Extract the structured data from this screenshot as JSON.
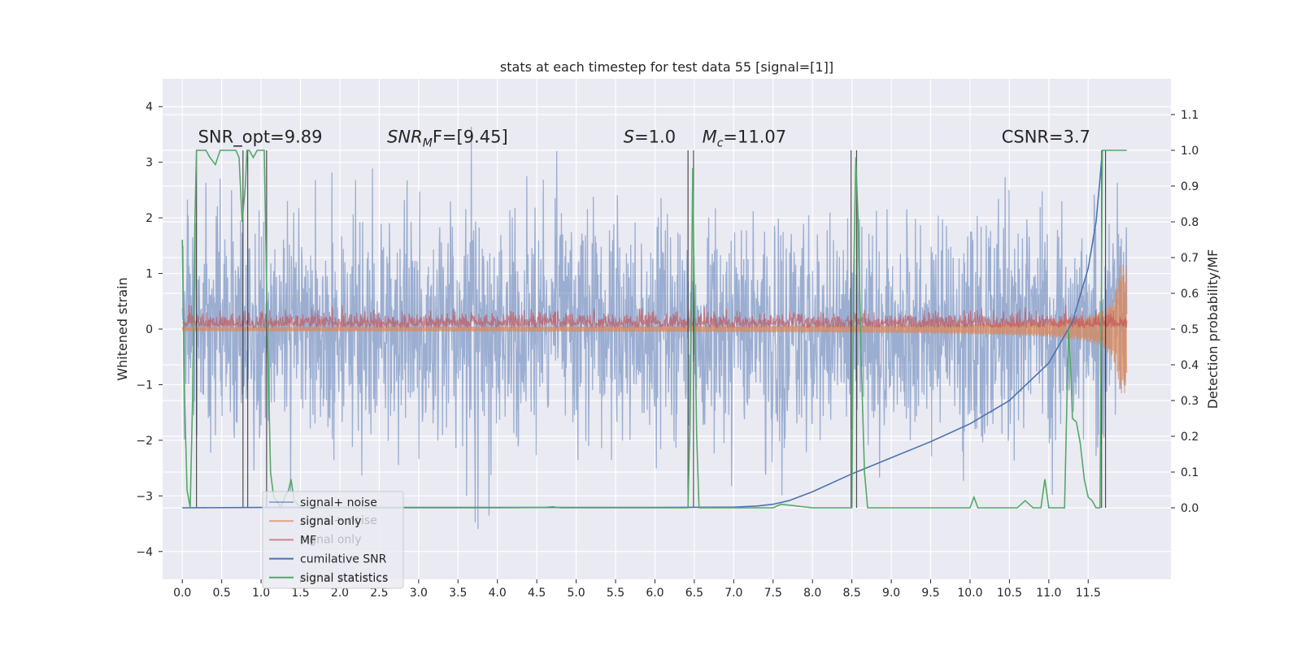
{
  "chart_data": {
    "type": "line",
    "title": "stats at each timestep for test data 55 [signal=[1]]",
    "xlabel": "",
    "ylabel": "Whitened strain",
    "y2label": "Detection probability/MF",
    "xlim": [
      -0.25,
      12.55
    ],
    "ylim": [
      -4.5,
      4.5
    ],
    "y2lim": [
      -0.2,
      1.2
    ],
    "xticks": [
      0.0,
      0.5,
      1.0,
      1.5,
      2.0,
      2.5,
      3.0,
      3.5,
      4.0,
      4.5,
      5.0,
      5.5,
      6.0,
      6.5,
      7.0,
      7.5,
      8.0,
      8.5,
      9.0,
      9.5,
      10.0,
      10.5,
      11.0,
      11.5
    ],
    "xtick_labels": [
      "0.0",
      "0.5",
      "1.0",
      "1.5",
      "2.0",
      "2.5",
      "3.0",
      "3.5",
      "4.0",
      "4.5",
      "5.0",
      "5.5",
      "6.0",
      "6.5",
      "7.0",
      "7.5",
      "8.0",
      "8.5",
      "9.0",
      "9.5",
      "10.0",
      "10.5",
      "11.0",
      "11.5"
    ],
    "yticks": [
      -4,
      -3,
      -2,
      -1,
      0,
      1,
      2,
      3,
      4
    ],
    "ytick_labels": [
      "−4",
      "−3",
      "−2",
      "−1",
      "0",
      "1",
      "2",
      "3",
      "4"
    ],
    "y2ticks": [
      0.0,
      0.1,
      0.2,
      0.3,
      0.4,
      0.5,
      0.6,
      0.7,
      0.8,
      0.9,
      1.0,
      1.1
    ],
    "y2tick_labels": [
      "0.0",
      "0.1",
      "0.2",
      "0.3",
      "0.4",
      "0.5",
      "0.6",
      "0.7",
      "0.8",
      "0.9",
      "1.0",
      "1.1"
    ],
    "grid": true,
    "legend_position": "lower-left",
    "annotations": [
      {
        "x": 0.2,
        "y": 3.25,
        "text": "SNR_opt=9.89",
        "math": false
      },
      {
        "x": 2.6,
        "y": 3.25,
        "text": "SNR",
        "sub": "M",
        "after": "F=[9.45]",
        "math": true
      },
      {
        "x": 5.6,
        "y": 3.25,
        "text": "S",
        "after": "=1.0",
        "math": true
      },
      {
        "x": 6.6,
        "y": 3.25,
        "text": "M",
        "sub": "c",
        "after": "=11.07",
        "math": true
      },
      {
        "x": 10.4,
        "y": 3.25,
        "text": "CSNR=3.7",
        "math": false
      }
    ],
    "series": [
      {
        "name": "signal+ noise",
        "color": "#4c72b0",
        "axis": "left",
        "style": "noise",
        "amplitude": 1.0,
        "x_range": [
          0.0,
          11.99
        ]
      },
      {
        "name": "signal only",
        "color": "#dd8452",
        "axis": "left",
        "style": "envelope",
        "x_range": [
          0.0,
          11.99
        ]
      },
      {
        "name": "MF",
        "color": "#c44e52",
        "axis": "left",
        "style": "positive-noise",
        "x_range": [
          0.0,
          11.99
        ]
      },
      {
        "name": "cumilative SNR",
        "color": "#4c72b0",
        "axis": "right",
        "x": [
          0.0,
          1.0,
          2.0,
          3.0,
          4.0,
          5.0,
          6.0,
          7.0,
          7.3,
          7.5,
          7.7,
          8.0,
          8.5,
          9.0,
          9.5,
          10.0,
          10.5,
          11.0,
          11.3,
          11.5,
          11.6,
          11.65,
          11.68
        ],
        "y": [
          0.0,
          0.001,
          0.001,
          0.001,
          0.001,
          0.001,
          0.001,
          0.002,
          0.005,
          0.01,
          0.02,
          0.045,
          0.095,
          0.14,
          0.185,
          0.235,
          0.3,
          0.405,
          0.52,
          0.67,
          0.8,
          0.92,
          1.0
        ]
      },
      {
        "name": "signal statistics",
        "color": "#55a868",
        "axis": "right",
        "x": [
          0.0,
          0.03,
          0.06,
          0.1,
          0.13,
          0.16,
          0.18,
          0.2,
          0.22,
          0.25,
          0.3,
          0.35,
          0.42,
          0.48,
          0.55,
          0.62,
          0.68,
          0.72,
          0.76,
          0.8,
          0.82,
          0.85,
          0.9,
          0.95,
          1.0,
          1.04,
          1.08,
          1.12,
          1.16,
          1.2,
          1.25,
          1.3,
          1.35,
          1.38,
          1.42,
          1.5,
          1.6,
          2.0,
          3.0,
          4.0,
          4.6,
          4.7,
          4.8,
          5.0,
          6.0,
          6.42,
          6.45,
          6.48,
          6.5,
          6.53,
          6.56,
          6.6,
          7.0,
          7.5,
          7.6,
          8.0,
          8.5,
          8.52,
          8.55,
          8.58,
          8.62,
          8.66,
          8.7,
          8.8,
          9.0,
          10.0,
          10.05,
          10.1,
          10.6,
          10.7,
          10.8,
          10.9,
          10.95,
          11.0,
          11.1,
          11.2,
          11.25,
          11.28,
          11.3,
          11.35,
          11.4,
          11.45,
          11.5,
          11.55,
          11.6,
          11.65,
          11.68,
          11.72,
          11.8,
          11.99
        ],
        "y": [
          0.75,
          0.3,
          0.05,
          0.0,
          0.3,
          0.8,
          1.0,
          1.0,
          1.0,
          1.0,
          1.0,
          0.98,
          0.96,
          1.0,
          1.0,
          1.0,
          1.0,
          0.98,
          0.8,
          0.9,
          1.0,
          1.0,
          0.98,
          1.0,
          1.0,
          1.0,
          0.5,
          0.1,
          0.03,
          0.02,
          0.0,
          0.03,
          0.05,
          0.08,
          0.02,
          0.0,
          0.0,
          0.0,
          0.0,
          0.0,
          0.001,
          0.003,
          0.0,
          0.0,
          0.0,
          0.0,
          0.3,
          0.95,
          0.6,
          0.2,
          0.0,
          0.0,
          0.0,
          0.0,
          0.01,
          0.0,
          0.0,
          0.6,
          0.98,
          0.8,
          0.4,
          0.1,
          0.0,
          0.0,
          0.0,
          0.0,
          0.03,
          0.0,
          0.0,
          0.02,
          0.0,
          0.0,
          0.08,
          0.0,
          0.0,
          0.0,
          0.5,
          0.38,
          0.25,
          0.24,
          0.18,
          0.08,
          0.03,
          0.02,
          0.0,
          0.0,
          1.0,
          1.0,
          1.0,
          1.0
        ]
      }
    ],
    "vlines": [
      {
        "x": 0.18,
        "y": [
          0.0,
          1.0
        ]
      },
      {
        "x": 0.77,
        "y": [
          0.0,
          1.0
        ]
      },
      {
        "x": 0.83,
        "y": [
          0.0,
          1.0
        ]
      },
      {
        "x": 1.07,
        "y": [
          0.0,
          1.0
        ]
      },
      {
        "x": 6.42,
        "y": [
          0.0,
          1.0
        ]
      },
      {
        "x": 6.49,
        "y": [
          0.0,
          1.0
        ]
      },
      {
        "x": 8.49,
        "y": [
          0.0,
          1.0
        ]
      },
      {
        "x": 8.56,
        "y": [
          0.0,
          1.0
        ]
      },
      {
        "x": 11.67,
        "y": [
          0.0,
          1.0
        ]
      },
      {
        "x": 11.72,
        "y": [
          0.0,
          1.0
        ]
      }
    ],
    "legend_overlay_ghost": [
      {
        "text": "signal+ noise",
        "offset_row": 1
      },
      {
        "text": "signal only",
        "offset_row": 2
      },
      {
        "text": "signal statistics",
        "offset_row": 4
      }
    ]
  }
}
